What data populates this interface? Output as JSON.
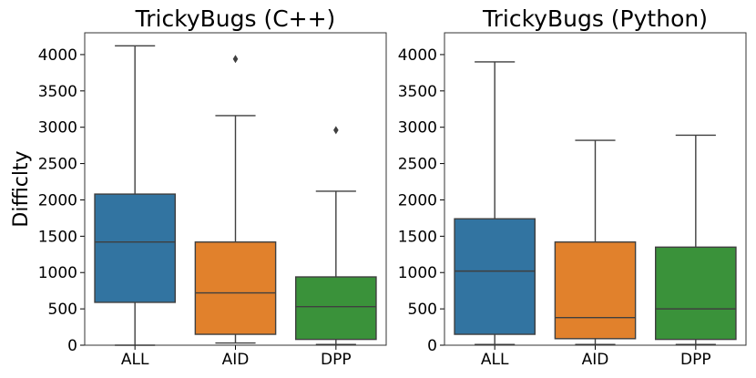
{
  "chart_data": [
    {
      "type": "box",
      "title": "TrickyBugs (C++)",
      "xlabel": "",
      "ylabel": "Difficlty",
      "ylim": [
        0,
        4300
      ],
      "yticks": [
        0,
        500,
        1000,
        1500,
        2000,
        2500,
        3000,
        3500,
        4000
      ],
      "categories": [
        "ALL",
        "AID",
        "DPP"
      ],
      "colors": [
        "#3274a1",
        "#e1812c",
        "#3a923a"
      ],
      "boxes": [
        {
          "category": "ALL",
          "whisker_low": 0,
          "q1": 590,
          "median": 1420,
          "q3": 2080,
          "whisker_high": 4120,
          "outliers": []
        },
        {
          "category": "AID",
          "whisker_low": 30,
          "q1": 150,
          "median": 720,
          "q3": 1420,
          "whisker_high": 3160,
          "outliers": [
            3940
          ]
        },
        {
          "category": "DPP",
          "whisker_low": 10,
          "q1": 80,
          "median": 530,
          "q3": 940,
          "whisker_high": 2120,
          "outliers": [
            2960
          ]
        }
      ]
    },
    {
      "type": "box",
      "title": "TrickyBugs (Python)",
      "xlabel": "",
      "ylabel": "",
      "ylim": [
        0,
        4300
      ],
      "yticks": [
        0,
        500,
        1000,
        1500,
        2000,
        2500,
        3000,
        3500,
        4000
      ],
      "categories": [
        "ALL",
        "AID",
        "DPP"
      ],
      "colors": [
        "#3274a1",
        "#e1812c",
        "#3a923a"
      ],
      "boxes": [
        {
          "category": "ALL",
          "whisker_low": 10,
          "q1": 150,
          "median": 1020,
          "q3": 1740,
          "whisker_high": 3900,
          "outliers": []
        },
        {
          "category": "AID",
          "whisker_low": 10,
          "q1": 90,
          "median": 380,
          "q3": 1420,
          "whisker_high": 2820,
          "outliers": []
        },
        {
          "category": "DPP",
          "whisker_low": 10,
          "q1": 80,
          "median": 500,
          "q3": 1350,
          "whisker_high": 2890,
          "outliers": []
        }
      ]
    }
  ]
}
